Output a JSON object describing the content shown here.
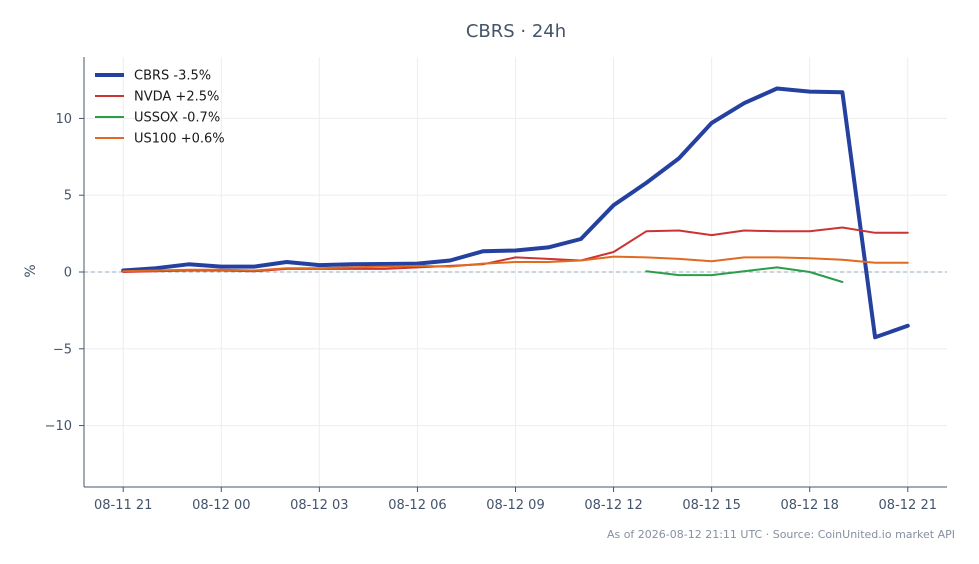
{
  "chart_data": {
    "type": "line",
    "title": "CBRS · 24h",
    "ylabel": "%",
    "xlabel": "",
    "ylim": [
      -14,
      14
    ],
    "y_ticks": [
      10,
      5,
      0,
      -5,
      -10
    ],
    "y_tick_labels": [
      "10",
      "5",
      "0",
      "−5",
      "−10"
    ],
    "x_ticks": [
      0,
      3,
      6,
      9,
      12,
      15,
      18,
      21,
      24
    ],
    "x_tick_labels": [
      "08-11 21",
      "08-12 00",
      "08-12 03",
      "08-12 06",
      "08-12 09",
      "08-12 12",
      "08-12 15",
      "08-12 18",
      "08-12 21"
    ],
    "xlim": [
      -1.2,
      25.2
    ],
    "zero_line": true,
    "grid": true,
    "legend_position": "top-left",
    "series": [
      {
        "name": "CBRS -3.5%",
        "color": "#2541a0",
        "width": 4,
        "x": [
          0,
          1,
          2,
          3,
          4,
          5,
          6,
          7,
          8,
          9,
          10,
          11,
          12,
          13,
          14,
          15,
          16,
          17,
          18,
          19,
          20,
          21,
          22,
          23,
          24
        ],
        "y": [
          0.1,
          0.25,
          0.5,
          0.35,
          0.35,
          0.65,
          0.45,
          0.5,
          0.52,
          0.55,
          0.75,
          1.35,
          1.4,
          1.6,
          2.15,
          4.35,
          5.8,
          7.4,
          9.7,
          11.0,
          11.95,
          11.75,
          11.7,
          -4.25,
          -3.5
        ]
      },
      {
        "name": "NVDA +2.5%",
        "color": "#cc3333",
        "width": 2,
        "x": [
          0,
          1,
          2,
          3,
          4,
          5,
          6,
          7,
          8,
          9,
          10,
          11,
          12,
          13,
          14,
          15,
          16,
          17,
          18,
          19,
          20,
          21,
          22,
          23,
          24
        ],
        "y": [
          0.0,
          0.05,
          0.1,
          0.1,
          0.05,
          0.2,
          0.2,
          0.2,
          0.2,
          0.3,
          0.4,
          0.5,
          0.95,
          0.85,
          0.75,
          1.3,
          2.65,
          2.7,
          2.4,
          2.7,
          2.65,
          2.65,
          2.9,
          2.55,
          2.55
        ]
      },
      {
        "name": "USSOX -0.7%",
        "color": "#2a9d4a",
        "width": 2,
        "x": [
          16,
          17,
          18,
          19,
          20,
          21,
          22
        ],
        "y": [
          0.05,
          -0.2,
          -0.2,
          0.05,
          0.3,
          0.0,
          -0.65
        ]
      },
      {
        "name": "US100 +0.6%",
        "color": "#e06a1e",
        "width": 2,
        "x": [
          0,
          1,
          2,
          3,
          4,
          5,
          6,
          7,
          8,
          9,
          10,
          11,
          12,
          13,
          14,
          15,
          16,
          17,
          18,
          19,
          20,
          21,
          22,
          23,
          24
        ],
        "y": [
          0.05,
          0.1,
          0.15,
          0.15,
          0.1,
          0.25,
          0.25,
          0.3,
          0.35,
          0.4,
          0.35,
          0.55,
          0.65,
          0.65,
          0.75,
          1.0,
          0.95,
          0.85,
          0.7,
          0.95,
          0.95,
          0.9,
          0.8,
          0.6,
          0.6
        ]
      }
    ]
  },
  "footer": "As of 2026-08-12 21:11 UTC · Source: CoinUnited.io market API"
}
